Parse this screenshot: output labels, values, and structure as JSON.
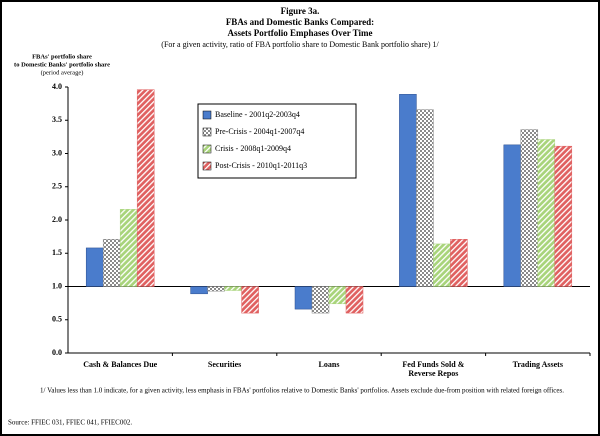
{
  "chart_data": {
    "type": "bar",
    "title": "Figure 3a.",
    "subtitle": [
      "FBAs and Domestic Banks Compared:",
      "Assets Portfolio Emphases Over Time"
    ],
    "note": "(For a given activity, ratio of  FBA portfolio share to Domestic Bank portfolio share) 1/",
    "y_label": [
      "FBAs' portfolio share",
      "to Domestic Banks' portfolio share",
      "(period average)"
    ],
    "categories": [
      "Cash & Balances Due",
      "Securities",
      "Loans",
      "Fed Funds Sold &\nReverse Repos",
      "Trading Assets"
    ],
    "series": [
      {
        "name": "Baseline - 2001q2-2003q4",
        "color": "#4a7ccc",
        "values": [
          1.58,
          0.89,
          0.66,
          3.89,
          3.13
        ]
      },
      {
        "name": "Pre-Crisis - 2004q1-2007q4",
        "color": "#8a8a8a",
        "values": [
          1.71,
          0.93,
          0.6,
          3.66,
          3.36
        ]
      },
      {
        "name": "Crisis - 2008q1-2009q4",
        "color": "#a8d47a",
        "values": [
          2.16,
          0.94,
          0.74,
          1.64,
          3.21
        ]
      },
      {
        "name": "Post-Crisis - 2010q1-2011q3",
        "color": "#e06060",
        "values": [
          3.96,
          0.6,
          0.6,
          1.71,
          3.11
        ]
      }
    ],
    "ylim": [
      0,
      4
    ],
    "yticks": [
      {
        "value": 0,
        "label": "0.0"
      },
      {
        "value": 0.5,
        "label": "0.5"
      },
      {
        "value": 1,
        "label": "1.0"
      },
      {
        "value": 1.5,
        "label": "1.5"
      },
      {
        "value": 2,
        "label": "2.0"
      },
      {
        "value": 2.5,
        "label": "2.5"
      },
      {
        "value": 3,
        "label": "3.0"
      },
      {
        "value": 3.5,
        "label": "3.5"
      },
      {
        "value": 4,
        "label": "4.0"
      }
    ],
    "baseline": 1,
    "footnote": "1/ Values less than 1.0 indicate, for a given activity, less emphasis in FBAs' portfolios relative to Domestic Banks' portfolios.  Assets exclude due-from position with related foreign offices.",
    "source": "Source: FFIEC 031, FFIEC 041, FFIEC002."
  }
}
